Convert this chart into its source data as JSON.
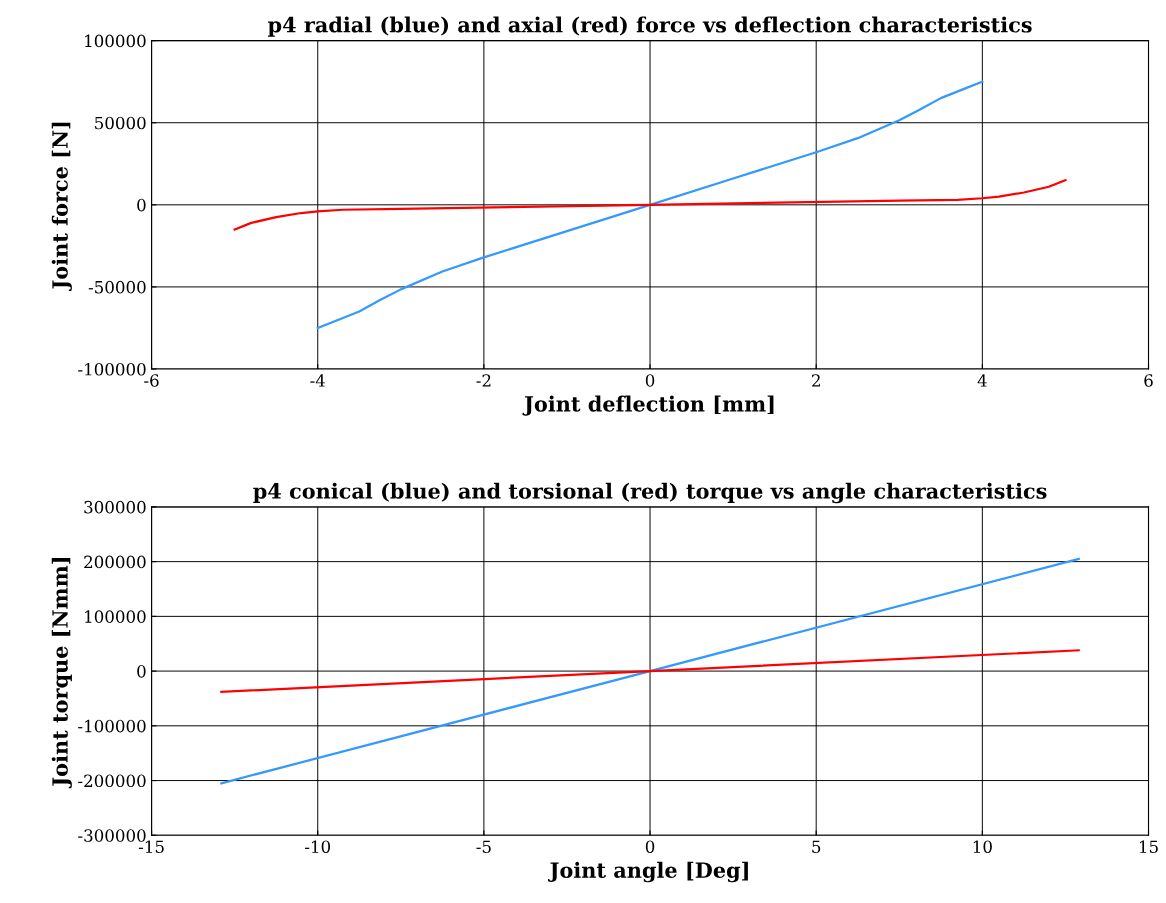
{
  "chart_data": [
    {
      "type": "line",
      "title": "p4 radial (blue) and axial (red) force vs deflection characteristics",
      "xlabel": "Joint deflection [mm]",
      "ylabel": "Joint force [N]",
      "xlim": [
        -6,
        6
      ],
      "xticks": [
        -6,
        -4,
        -2,
        0,
        2,
        4,
        6
      ],
      "ylim": [
        -100000,
        100000
      ],
      "yticks": [
        -100000,
        -50000,
        0,
        50000,
        100000
      ],
      "grid": true,
      "series": [
        {
          "color": "#3399ff",
          "x": [
            -4,
            -3.75,
            -3.5,
            -3.25,
            -3,
            -2.5,
            -2,
            -1,
            0,
            1,
            2,
            2.5,
            3,
            3.25,
            3.5,
            3.75,
            4
          ],
          "values": [
            -75000,
            -70000,
            -65000,
            -58000,
            -51500,
            -40600,
            -32000,
            -16000,
            0,
            16000,
            32000,
            40600,
            51500,
            58000,
            65000,
            70000,
            75000
          ]
        },
        {
          "color": "#ff0000",
          "x": [
            -5,
            -4.8,
            -4.5,
            -4.2,
            -4,
            -3.7,
            -3,
            0,
            3,
            3.7,
            4,
            4.2,
            4.5,
            4.8,
            5
          ],
          "values": [
            -15000,
            -11000,
            -7500,
            -5000,
            -4000,
            -3000,
            -2500,
            0,
            2500,
            3000,
            4000,
            5000,
            7500,
            11000,
            15000
          ]
        }
      ]
    },
    {
      "type": "line",
      "title": "p4 conical (blue) and torsional (red) torque vs angle characteristics",
      "xlabel": "Joint angle [Deg]",
      "ylabel": "Joint torque [Nmm]",
      "xlim": [
        -15,
        15
      ],
      "xticks": [
        -15,
        -10,
        -5,
        0,
        5,
        10,
        15
      ],
      "ylim": [
        -300000,
        300000
      ],
      "yticks": [
        -300000,
        -200000,
        -100000,
        0,
        100000,
        200000,
        300000
      ],
      "grid": true,
      "series": [
        {
          "color": "#3399ff",
          "x": [
            -12.9,
            0,
            12.9
          ],
          "values": [
            -205000,
            0,
            205000
          ]
        },
        {
          "color": "#ff0000",
          "x": [
            -12.9,
            0,
            12.9
          ],
          "values": [
            -38000,
            0,
            38000
          ]
        }
      ]
    }
  ]
}
